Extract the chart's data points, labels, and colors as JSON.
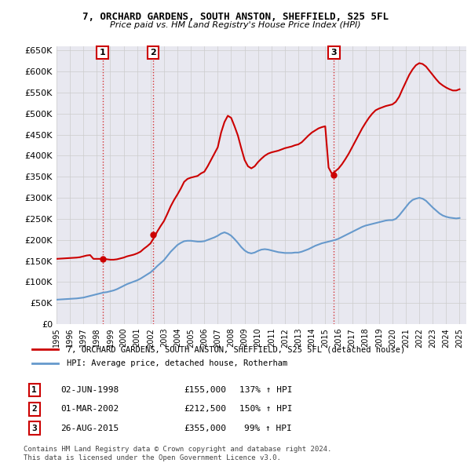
{
  "title": "7, ORCHARD GARDENS, SOUTH ANSTON, SHEFFIELD, S25 5FL",
  "subtitle": "Price paid vs. HM Land Registry's House Price Index (HPI)",
  "legend_line1": "7, ORCHARD GARDENS, SOUTH ANSTON, SHEFFIELD, S25 5FL (detached house)",
  "legend_line2": "HPI: Average price, detached house, Rotherham",
  "sale_points": [
    {
      "label": "1",
      "date_idx": 3.42,
      "price": 155000,
      "date_str": "02-JUN-1998",
      "pct": "137%",
      "dir": "↑"
    },
    {
      "label": "2",
      "date_idx": 7.17,
      "price": 212500,
      "date_str": "01-MAR-2002",
      "pct": "150%",
      "dir": "↑"
    },
    {
      "label": "3",
      "date_idx": 20.65,
      "price": 355000,
      "date_str": "26-AUG-2015",
      "pct": "99%",
      "dir": "↑"
    }
  ],
  "vline_color": "#cc0000",
  "vline_style": ":",
  "sale_marker_color": "#cc0000",
  "hpi_color": "#6699cc",
  "price_color": "#cc0000",
  "ylim": [
    0,
    660000
  ],
  "yticks": [
    0,
    50000,
    100000,
    150000,
    200000,
    250000,
    300000,
    350000,
    400000,
    450000,
    500000,
    550000,
    600000,
    650000
  ],
  "footer1": "Contains HM Land Registry data © Crown copyright and database right 2024.",
  "footer2": "This data is licensed under the Open Government Licence v3.0.",
  "bg_color": "#ffffff",
  "grid_color": "#cccccc",
  "hpi_data": {
    "years": [
      1995,
      1995.25,
      1995.5,
      1995.75,
      1996,
      1996.25,
      1996.5,
      1996.75,
      1997,
      1997.25,
      1997.5,
      1997.75,
      1998,
      1998.25,
      1998.5,
      1998.75,
      1999,
      1999.25,
      1999.5,
      1999.75,
      2000,
      2000.25,
      2000.5,
      2000.75,
      2001,
      2001.25,
      2001.5,
      2001.75,
      2002,
      2002.25,
      2002.5,
      2002.75,
      2003,
      2003.25,
      2003.5,
      2003.75,
      2004,
      2004.25,
      2004.5,
      2004.75,
      2005,
      2005.25,
      2005.5,
      2005.75,
      2006,
      2006.25,
      2006.5,
      2006.75,
      2007,
      2007.25,
      2007.5,
      2007.75,
      2008,
      2008.25,
      2008.5,
      2008.75,
      2009,
      2009.25,
      2009.5,
      2009.75,
      2010,
      2010.25,
      2010.5,
      2010.75,
      2011,
      2011.25,
      2011.5,
      2011.75,
      2012,
      2012.25,
      2012.5,
      2012.75,
      2013,
      2013.25,
      2013.5,
      2013.75,
      2014,
      2014.25,
      2014.5,
      2014.75,
      2015,
      2015.25,
      2015.5,
      2015.75,
      2016,
      2016.25,
      2016.5,
      2016.75,
      2017,
      2017.25,
      2017.5,
      2017.75,
      2018,
      2018.25,
      2018.5,
      2018.75,
      2019,
      2019.25,
      2019.5,
      2019.75,
      2020,
      2020.25,
      2020.5,
      2020.75,
      2021,
      2021.25,
      2021.5,
      2021.75,
      2022,
      2022.25,
      2022.5,
      2022.75,
      2023,
      2023.25,
      2023.5,
      2023.75,
      2024,
      2024.25,
      2024.5,
      2024.75,
      2025
    ],
    "values": [
      58000,
      58500,
      59000,
      59500,
      60000,
      60500,
      61000,
      62000,
      63000,
      65000,
      67000,
      69000,
      71000,
      73000,
      75000,
      76000,
      78000,
      80000,
      83000,
      87000,
      91000,
      95000,
      98000,
      101000,
      104000,
      108000,
      113000,
      118000,
      123000,
      130000,
      138000,
      145000,
      152000,
      162000,
      172000,
      180000,
      188000,
      193000,
      197000,
      198000,
      198000,
      197000,
      196000,
      196000,
      197000,
      200000,
      203000,
      206000,
      210000,
      215000,
      218000,
      215000,
      210000,
      202000,
      193000,
      183000,
      175000,
      170000,
      168000,
      170000,
      174000,
      177000,
      178000,
      177000,
      175000,
      173000,
      171000,
      170000,
      169000,
      169000,
      169000,
      170000,
      170000,
      172000,
      175000,
      178000,
      182000,
      186000,
      189000,
      192000,
      194000,
      196000,
      198000,
      200000,
      203000,
      207000,
      211000,
      215000,
      219000,
      223000,
      227000,
      231000,
      234000,
      236000,
      238000,
      240000,
      242000,
      244000,
      246000,
      247000,
      247000,
      250000,
      258000,
      268000,
      278000,
      288000,
      295000,
      298000,
      300000,
      298000,
      293000,
      285000,
      277000,
      270000,
      263000,
      258000,
      255000,
      253000,
      252000,
      251000,
      252000
    ]
  },
  "price_data": {
    "years": [
      1995,
      1995.25,
      1995.5,
      1995.75,
      1996,
      1996.25,
      1996.5,
      1996.75,
      1997,
      1997.25,
      1997.5,
      1997.75,
      1998,
      1998.25,
      1998.5,
      1998.75,
      1999,
      1999.25,
      1999.5,
      1999.75,
      2000,
      2000.25,
      2000.5,
      2000.75,
      2001,
      2001.25,
      2001.5,
      2001.75,
      2002,
      2002.25,
      2002.5,
      2002.75,
      2003,
      2003.25,
      2003.5,
      2003.75,
      2004,
      2004.25,
      2004.5,
      2004.75,
      2005,
      2005.25,
      2005.5,
      2005.75,
      2006,
      2006.25,
      2006.5,
      2006.75,
      2007,
      2007.25,
      2007.5,
      2007.75,
      2008,
      2008.25,
      2008.5,
      2008.75,
      2009,
      2009.25,
      2009.5,
      2009.75,
      2010,
      2010.25,
      2010.5,
      2010.75,
      2011,
      2011.25,
      2011.5,
      2011.75,
      2012,
      2012.25,
      2012.5,
      2012.75,
      2013,
      2013.25,
      2013.5,
      2013.75,
      2014,
      2014.25,
      2014.5,
      2014.75,
      2015,
      2015.25,
      2015.5,
      2015.75,
      2016,
      2016.25,
      2016.5,
      2016.75,
      2017,
      2017.25,
      2017.5,
      2017.75,
      2018,
      2018.25,
      2018.5,
      2018.75,
      2019,
      2019.25,
      2019.5,
      2019.75,
      2020,
      2020.25,
      2020.5,
      2020.75,
      2021,
      2021.25,
      2021.5,
      2021.75,
      2022,
      2022.25,
      2022.5,
      2022.75,
      2023,
      2023.25,
      2023.5,
      2023.75,
      2024,
      2024.25,
      2024.5,
      2024.75,
      2025
    ],
    "values": [
      155000,
      155500,
      156000,
      156500,
      157000,
      157500,
      158000,
      159000,
      161000,
      163000,
      164000,
      155000,
      155000,
      155000,
      155000,
      154000,
      153000,
      153000,
      154000,
      156000,
      158000,
      161000,
      163000,
      165000,
      168000,
      172000,
      179000,
      185000,
      192000,
      205000,
      220000,
      233000,
      245000,
      262000,
      280000,
      295000,
      308000,
      322000,
      338000,
      345000,
      348000,
      350000,
      352000,
      358000,
      362000,
      375000,
      390000,
      405000,
      420000,
      455000,
      480000,
      495000,
      490000,
      470000,
      448000,
      418000,
      390000,
      375000,
      370000,
      375000,
      385000,
      393000,
      400000,
      405000,
      408000,
      410000,
      412000,
      415000,
      418000,
      420000,
      422000,
      425000,
      427000,
      432000,
      440000,
      448000,
      455000,
      460000,
      465000,
      468000,
      470000,
      372000,
      357000,
      363000,
      370000,
      380000,
      392000,
      405000,
      420000,
      435000,
      450000,
      465000,
      478000,
      490000,
      500000,
      508000,
      512000,
      515000,
      518000,
      520000,
      522000,
      528000,
      540000,
      558000,
      575000,
      592000,
      605000,
      615000,
      620000,
      618000,
      612000,
      602000,
      592000,
      582000,
      573000,
      567000,
      562000,
      558000,
      555000,
      555000,
      558000
    ]
  }
}
